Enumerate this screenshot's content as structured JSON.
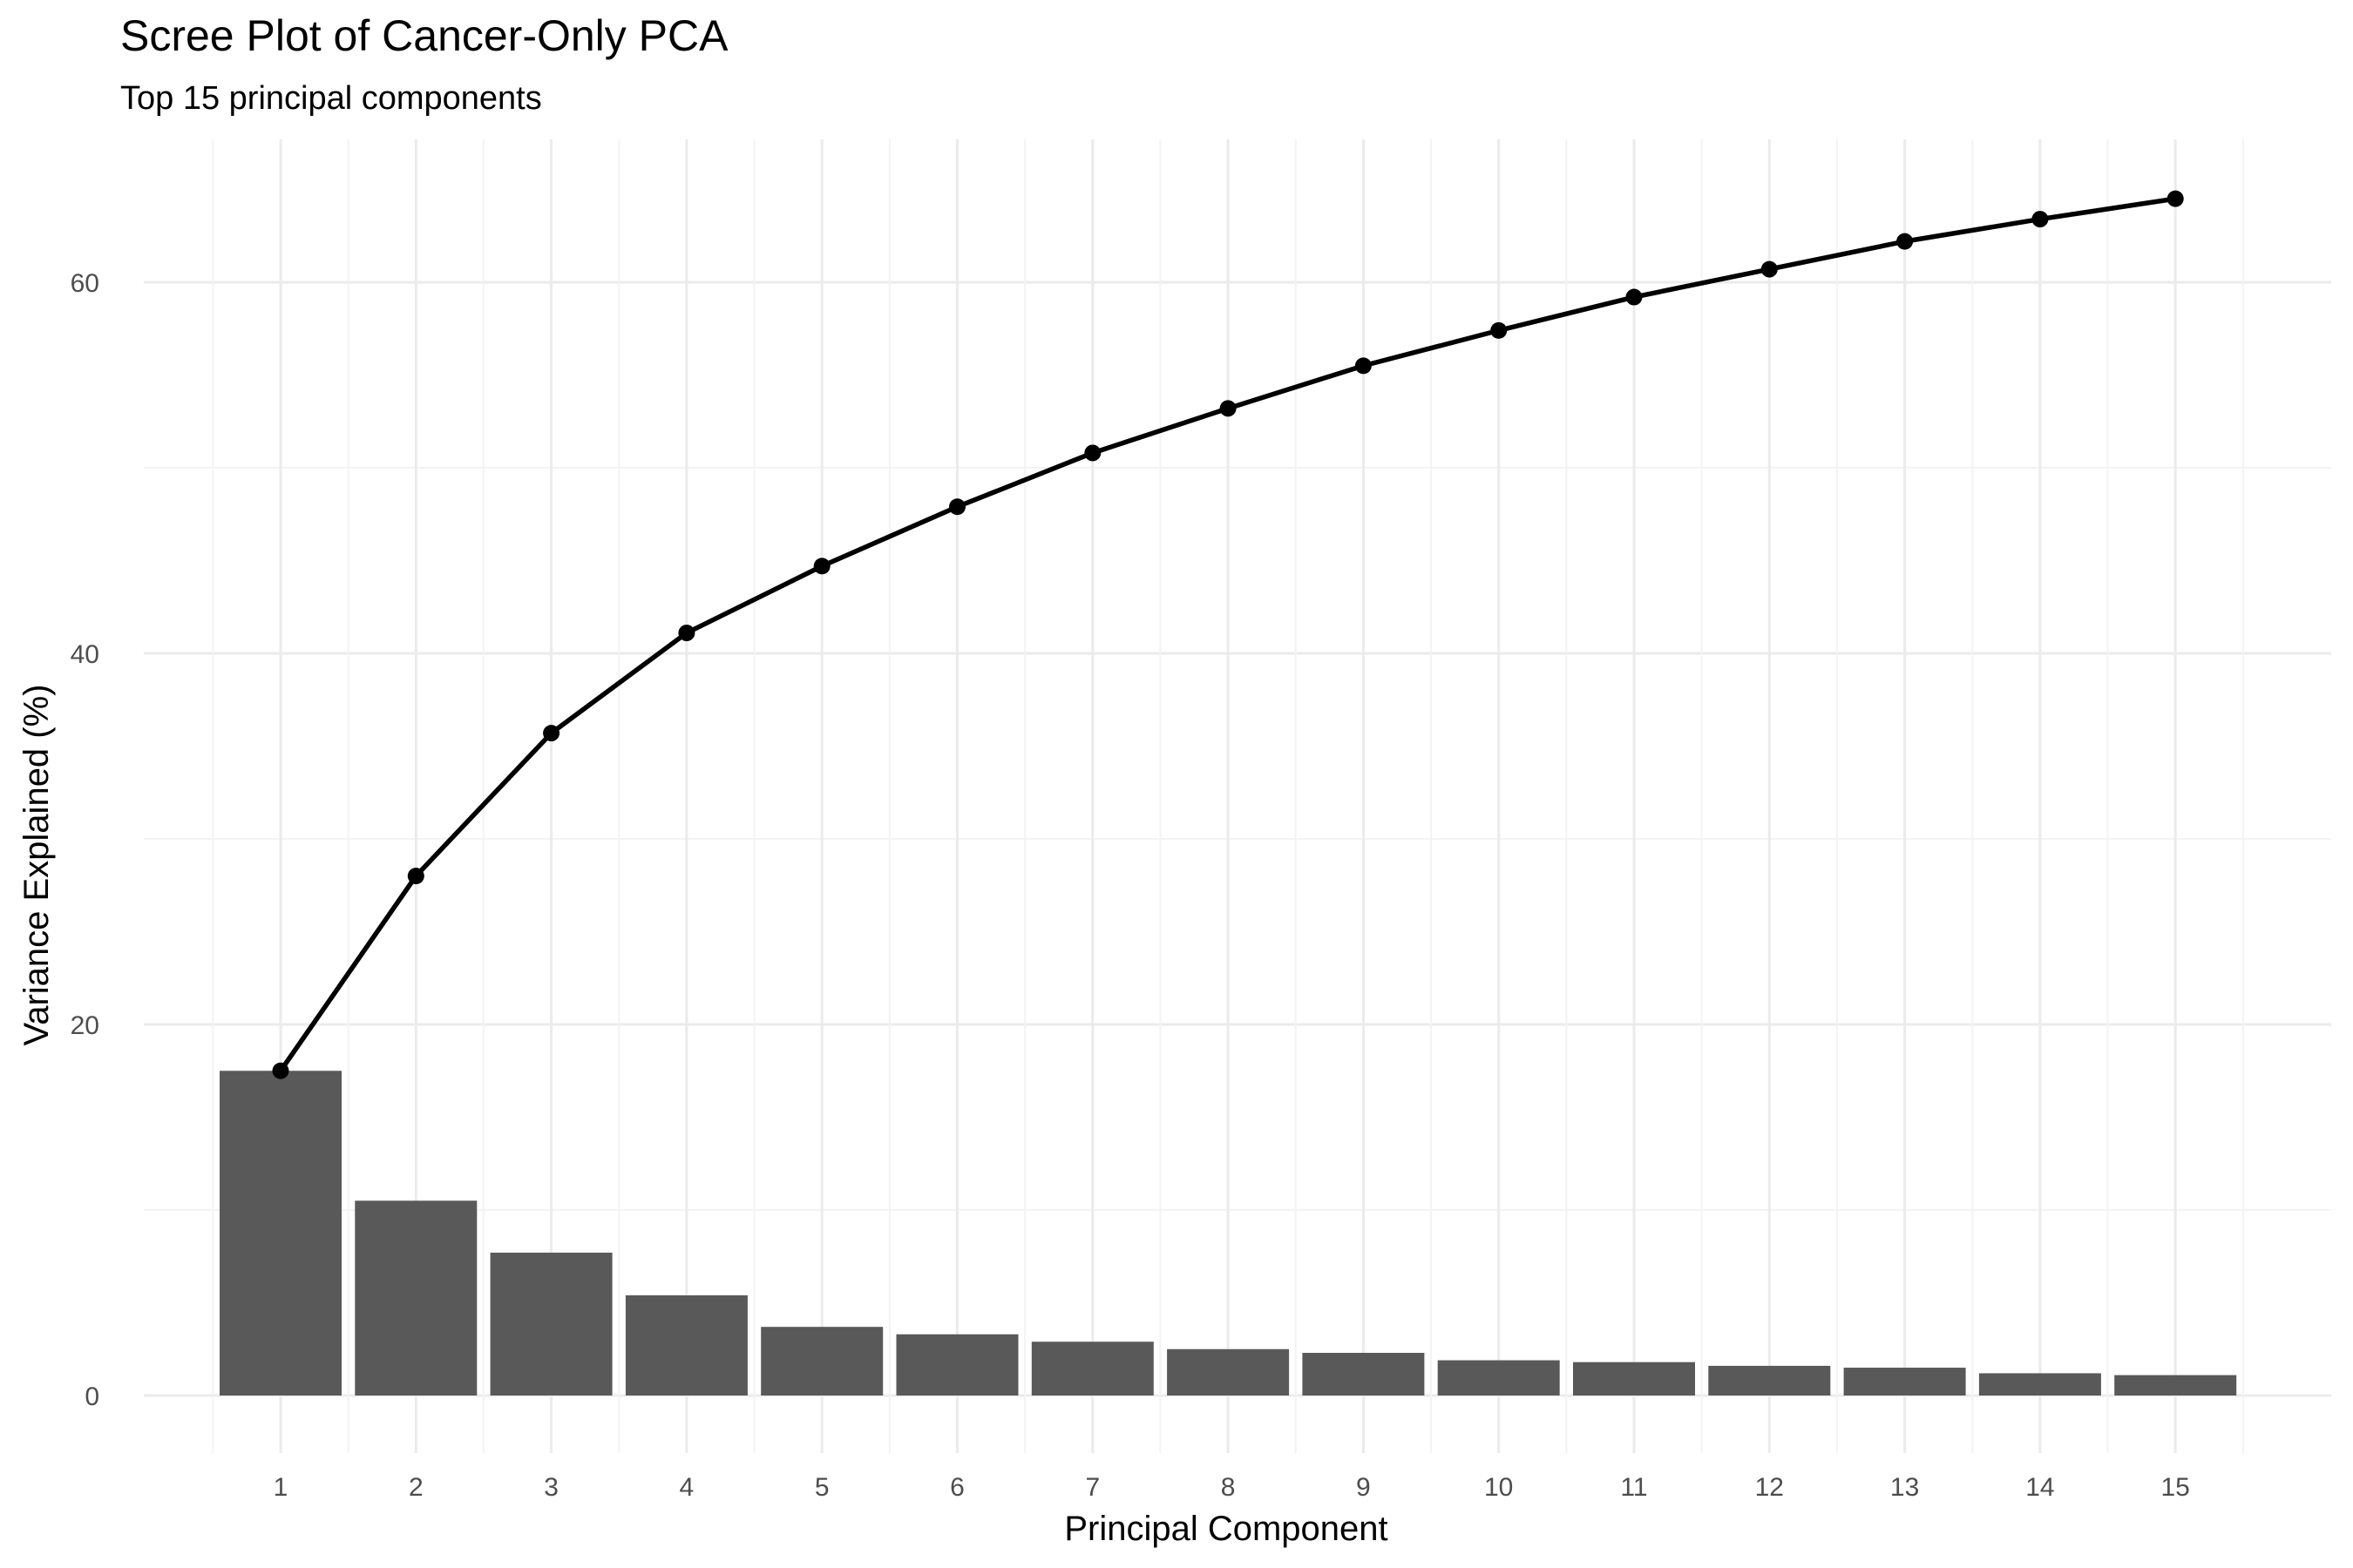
{
  "chart_data": {
    "type": "bar",
    "title": "Scree Plot of Cancer-Only PCA",
    "subtitle": "Top 15 principal components",
    "xlabel": "Principal Component",
    "ylabel": "Variance Explained (%)",
    "categories": [
      "1",
      "2",
      "3",
      "4",
      "5",
      "6",
      "7",
      "8",
      "9",
      "10",
      "11",
      "12",
      "13",
      "14",
      "15"
    ],
    "series": [
      {
        "type": "bar",
        "values": [
          17.5,
          10.5,
          7.7,
          5.4,
          3.7,
          3.3,
          2.9,
          2.5,
          2.3,
          1.9,
          1.8,
          1.6,
          1.5,
          1.2,
          1.1
        ],
        "color": "#595959"
      },
      {
        "type": "line",
        "values": [
          17.5,
          28.0,
          35.7,
          41.1,
          44.7,
          47.9,
          50.8,
          53.2,
          55.5,
          57.4,
          59.2,
          60.7,
          62.2,
          63.4,
          64.5
        ],
        "color": "#000000"
      }
    ],
    "yticks": [
      0,
      20,
      40,
      60
    ],
    "ylim": [
      -3.2,
      67.6
    ],
    "grid": true,
    "background": "#ffffff",
    "grid_color": "#ebebeb"
  }
}
